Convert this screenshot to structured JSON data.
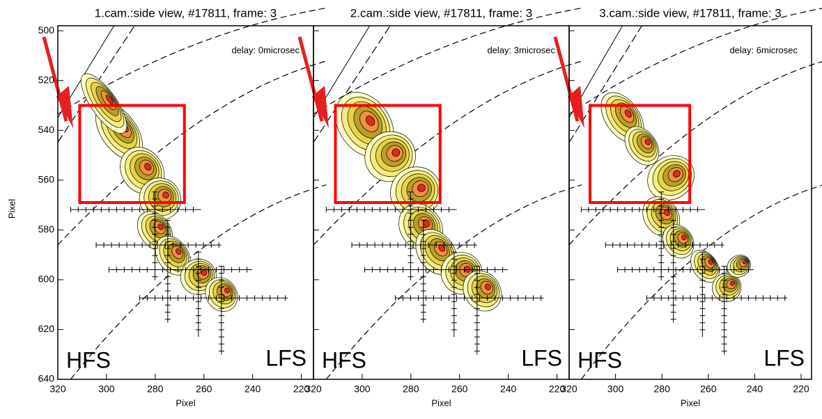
{
  "chart_data": [
    {
      "type": "contour",
      "title": "1.cam.:side view, #17811, frame: 3",
      "delay": "delay: 0microsec",
      "left_label": "HFS",
      "right_label": "LFS",
      "x_label": "Pixel",
      "y_label": "Pixel",
      "show_ytick_labels": true,
      "xlim": [
        320,
        215
      ],
      "ylim": [
        498,
        640
      ],
      "xticks": [
        320,
        300,
        280,
        260,
        240,
        220
      ],
      "yticks": [
        500,
        520,
        540,
        560,
        580,
        600,
        620,
        640
      ],
      "highlight": {
        "x": [
          311,
          268
        ],
        "y": [
          530,
          569
        ],
        "color": "#ff0000"
      }
    },
    {
      "type": "contour",
      "title": "2.cam.:side view, #17811, frame: 3",
      "delay": "delay: 3microsec",
      "left_label": "HFS",
      "right_label": "LFS",
      "x_label": "Pixel",
      "show_ytick_labels": false,
      "xlim": [
        320,
        215
      ],
      "ylim": [
        498,
        640
      ],
      "xticks": [
        320,
        300,
        280,
        260,
        240,
        220
      ],
      "yticks": [
        500,
        520,
        540,
        560,
        580,
        600,
        620,
        640
      ],
      "highlight": {
        "x": [
          311,
          268
        ],
        "y": [
          530,
          569
        ],
        "color": "#ff0000"
      }
    },
    {
      "type": "contour",
      "title": "3.cam.:side view, #17811, frame: 3",
      "delay": "delay: 6microsec",
      "left_label": "HFS",
      "right_label": "LFS",
      "x_label": "Pixel",
      "show_ytick_labels": false,
      "xlim": [
        320,
        215.5
      ],
      "ylim": [
        498,
        640
      ],
      "xticks": [
        320,
        300,
        280,
        260,
        240,
        220
      ],
      "yticks": [
        500,
        520,
        540,
        560,
        580,
        600,
        620,
        640
      ],
      "highlight": {
        "x": [
          311,
          268
        ],
        "y": [
          530,
          569
        ],
        "color": "#ff0000"
      }
    }
  ]
}
